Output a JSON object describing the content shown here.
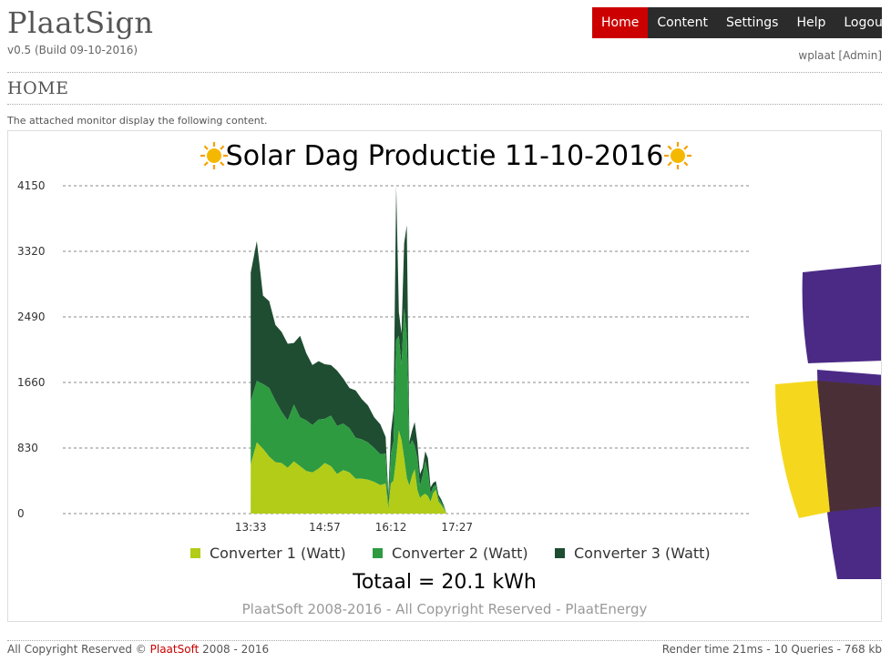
{
  "app": {
    "logo": "PlaatSign",
    "version": "v0.5 (Build 09-10-2016)"
  },
  "nav": [
    {
      "label": "Home",
      "active": true
    },
    {
      "label": "Content",
      "active": false
    },
    {
      "label": "Settings",
      "active": false
    },
    {
      "label": "Help",
      "active": false
    },
    {
      "label": "Logout",
      "active": false
    }
  ],
  "user": "wplaat [Admin]",
  "page": {
    "title": "HOME",
    "intro": "The attached monitor display the following content."
  },
  "display": {
    "footer_note": "PlaatSoft 2008-2016 - All Copyright Reserved - PlaatEnergy",
    "total": "Totaal = 20.1 kWh",
    "sun_icon": "sun-icon",
    "logo_colors": {
      "purple": "#4b2a86",
      "yellow": "#f5d81e",
      "overlap": "#4a3036"
    }
  },
  "chart_data": {
    "type": "area",
    "stacked": true,
    "title": "Solar Dag Productie 11-10-2016",
    "ylim": [
      0,
      4150
    ],
    "yticks": [
      0,
      830,
      1660,
      2490,
      3320,
      4150
    ],
    "xlim": [
      "10:00",
      "23:00"
    ],
    "xticks": [
      "13:33",
      "14:57",
      "16:12",
      "17:27"
    ],
    "grid": true,
    "legend_position": "bottom",
    "x": [
      "13:33",
      "13:40",
      "13:47",
      "13:54",
      "14:01",
      "14:08",
      "14:15",
      "14:22",
      "14:29",
      "14:36",
      "14:43",
      "14:50",
      "14:57",
      "15:04",
      "15:11",
      "15:18",
      "15:25",
      "15:32",
      "15:39",
      "15:46",
      "15:53",
      "16:00",
      "16:06",
      "16:09",
      "16:12",
      "16:15",
      "16:18",
      "16:21",
      "16:24",
      "16:27",
      "16:30",
      "16:33",
      "16:36",
      "16:39",
      "16:42",
      "16:45",
      "16:48",
      "16:51",
      "16:54",
      "16:57",
      "17:00",
      "17:03",
      "17:06",
      "17:09",
      "17:12",
      "17:15",
      "17:20",
      "17:25",
      "17:30",
      "17:35",
      "17:40",
      "17:45",
      "17:50",
      "17:55",
      "18:00"
    ],
    "series": [
      {
        "name": "Converter 1 (Watt)",
        "color": "#b2cc18",
        "values": [
          620,
          900,
          820,
          720,
          650,
          640,
          580,
          660,
          600,
          540,
          520,
          570,
          640,
          600,
          500,
          550,
          520,
          440,
          440,
          430,
          400,
          360,
          380,
          60,
          380,
          420,
          700,
          1050,
          930,
          700,
          450,
          350,
          480,
          560,
          300,
          200,
          230,
          250,
          220,
          150,
          260,
          300,
          150,
          110,
          60,
          0,
          0,
          0,
          0,
          0,
          0,
          0,
          0,
          0,
          0
        ]
      },
      {
        "name": "Converter 2 (Watt)",
        "color": "#2e9b41",
        "values": [
          800,
          780,
          820,
          870,
          780,
          650,
          600,
          720,
          620,
          640,
          600,
          620,
          560,
          640,
          610,
          590,
          560,
          520,
          500,
          470,
          430,
          390,
          380,
          60,
          380,
          500,
          1500,
          1200,
          950,
          1900,
          1800,
          500,
          450,
          300,
          400,
          150,
          250,
          420,
          300,
          100,
          80,
          60,
          50,
          30,
          20,
          0,
          0,
          0,
          0,
          0,
          0,
          0,
          0,
          0,
          0
        ]
      },
      {
        "name": "Converter 3 (Watt)",
        "color": "#1f4d32",
        "values": [
          1630,
          1770,
          1120,
          1100,
          960,
          1010,
          970,
          780,
          1030,
          850,
          760,
          740,
          690,
          640,
          700,
          570,
          510,
          600,
          510,
          470,
          390,
          380,
          210,
          120,
          270,
          400,
          1950,
          300,
          400,
          820,
          1400,
          60,
          120,
          300,
          200,
          150,
          100,
          120,
          180,
          80,
          50,
          50,
          40,
          40,
          20,
          0,
          0,
          0,
          0,
          0,
          0,
          0,
          0,
          0,
          0
        ]
      }
    ]
  },
  "footer": {
    "copyright_prefix": "All Copyright Reserved © ",
    "brand": "PlaatSoft",
    "copyright_suffix": " 2008 - 2016",
    "stats": "Render time 21ms - 10 Queries - 768 kb"
  }
}
